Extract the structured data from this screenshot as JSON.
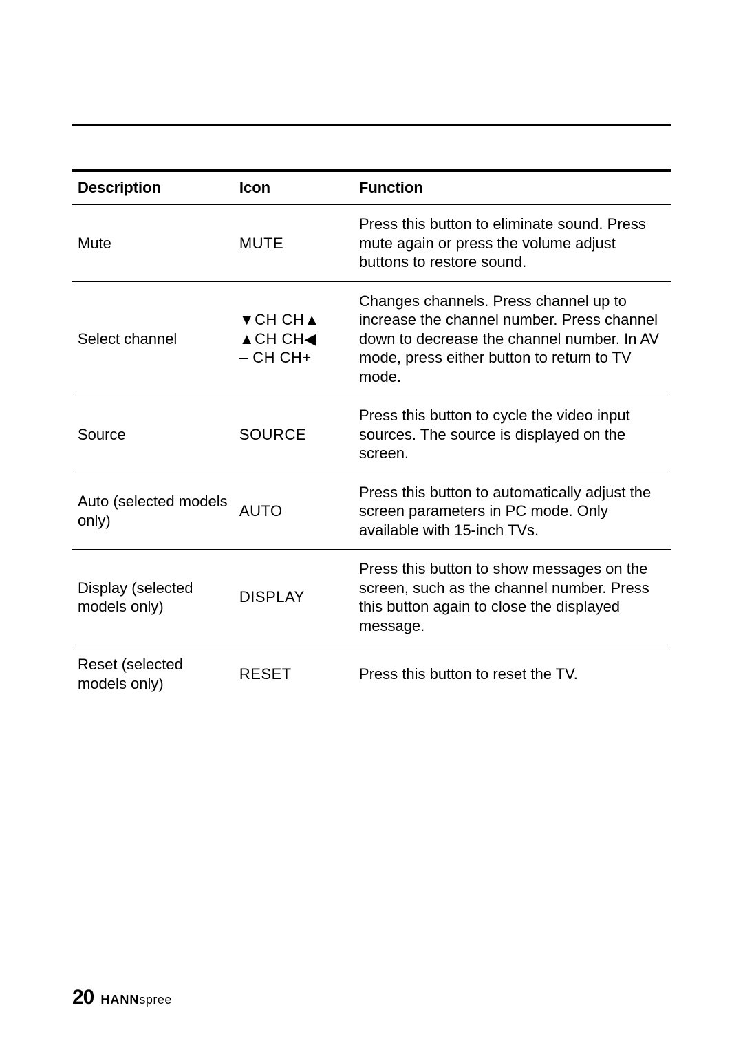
{
  "table": {
    "headers": {
      "description": "Description",
      "icon": "Icon",
      "function": "Function"
    },
    "rows": [
      {
        "description": "Mute",
        "icon_lines": [
          "MUTE"
        ],
        "function": "Press this button to eliminate sound. Press mute again or press the volume adjust buttons to restore sound."
      },
      {
        "description": "Select channel",
        "icon_lines": [
          "▼CH CH▲",
          "▲CH CH◀",
          "– CH CH+"
        ],
        "function": "Changes channels. Press channel up to increase the channel number. Press channel down to decrease the channel number. In AV mode, press either button to return to TV mode."
      },
      {
        "description": "Source",
        "icon_lines": [
          "SOURCE"
        ],
        "function": "Press this button to cycle the video input sources. The source is displayed on the screen."
      },
      {
        "description": "Auto (selected models only)",
        "icon_lines": [
          "AUTO"
        ],
        "function": "Press this button to automatically adjust the screen parameters in PC mode. Only available with 15-inch TVs."
      },
      {
        "description": "Display (selected models only)",
        "icon_lines": [
          "DISPLAY"
        ],
        "function": "Press this button to show messages on the screen, such as the channel number. Press this button again to close the displayed message."
      },
      {
        "description": "Reset (selected models only)",
        "icon_lines": [
          "RESET"
        ],
        "function": "Press this button to reset the TV."
      }
    ]
  },
  "footer": {
    "page_number": "20",
    "brand_bold": "HANN",
    "brand_light": "spree"
  }
}
